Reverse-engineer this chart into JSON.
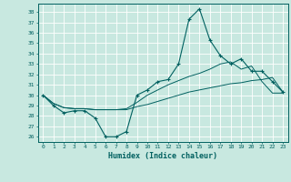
{
  "title": "",
  "xlabel": "Humidex (Indice chaleur)",
  "xlim": [
    -0.5,
    23.5
  ],
  "ylim": [
    25.5,
    38.8
  ],
  "yticks": [
    26,
    27,
    28,
    29,
    30,
    31,
    32,
    33,
    34,
    35,
    36,
    37,
    38
  ],
  "xticks": [
    0,
    1,
    2,
    3,
    4,
    5,
    6,
    7,
    8,
    9,
    10,
    11,
    12,
    13,
    14,
    15,
    16,
    17,
    18,
    19,
    20,
    21,
    22,
    23
  ],
  "bg_color": "#c8e8e0",
  "line_color": "#006060",
  "grid_color": "#ffffff",
  "line1_x": [
    0,
    1,
    2,
    3,
    4,
    5,
    6,
    7,
    8,
    9,
    10,
    11,
    12,
    13,
    14,
    15,
    16,
    17,
    18,
    19,
    20,
    21,
    22,
    23
  ],
  "line1_y": [
    30.0,
    29.0,
    28.3,
    28.5,
    28.5,
    27.8,
    26.0,
    26.0,
    26.5,
    30.0,
    30.5,
    31.3,
    31.5,
    33.0,
    37.3,
    38.3,
    35.3,
    33.8,
    33.0,
    33.5,
    32.3,
    32.3,
    31.3,
    30.3
  ],
  "line2_x": [
    0,
    1,
    2,
    3,
    4,
    5,
    6,
    7,
    8,
    9,
    10,
    11,
    12,
    13,
    14,
    15,
    16,
    17,
    18,
    19,
    20,
    21,
    22,
    23
  ],
  "line2_y": [
    30.0,
    29.2,
    28.8,
    28.7,
    28.7,
    28.6,
    28.6,
    28.6,
    28.6,
    28.9,
    29.1,
    29.4,
    29.7,
    30.0,
    30.3,
    30.5,
    30.7,
    30.9,
    31.1,
    31.2,
    31.4,
    31.5,
    31.7,
    30.3
  ],
  "line3_x": [
    0,
    1,
    2,
    3,
    4,
    5,
    6,
    7,
    8,
    9,
    10,
    11,
    12,
    13,
    14,
    15,
    16,
    17,
    18,
    19,
    20,
    21,
    22,
    23
  ],
  "line3_y": [
    30.0,
    29.2,
    28.8,
    28.7,
    28.7,
    28.6,
    28.6,
    28.6,
    28.7,
    29.3,
    30.0,
    30.5,
    31.0,
    31.4,
    31.8,
    32.1,
    32.5,
    33.0,
    33.2,
    32.5,
    32.8,
    31.3,
    30.2,
    30.2
  ]
}
